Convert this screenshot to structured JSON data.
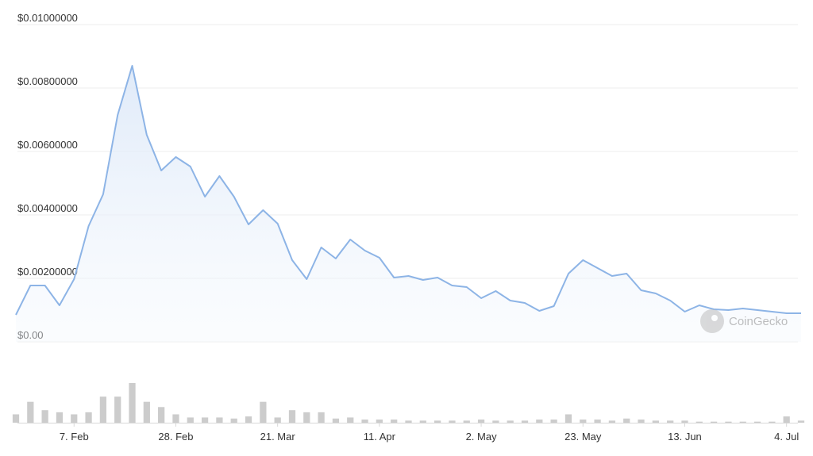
{
  "chart_data": {
    "type": "line",
    "x": [
      "26. Jan",
      "29. Jan",
      "1. Feb",
      "4. Feb",
      "7. Feb",
      "10. Feb",
      "13. Feb",
      "16. Feb",
      "19. Feb",
      "22. Feb",
      "25. Feb",
      "28. Feb",
      "3. Mar",
      "6. Mar",
      "9. Mar",
      "12. Mar",
      "15. Mar",
      "18. Mar",
      "21. Mar",
      "24. Mar",
      "27. Mar",
      "30. Mar",
      "2. Apr",
      "5. Apr",
      "8. Apr",
      "11. Apr",
      "14. Apr",
      "17. Apr",
      "20. Apr",
      "23. Apr",
      "26. Apr",
      "29. Apr",
      "2. May",
      "5. May",
      "8. May",
      "11. May",
      "14. May",
      "17. May",
      "20. May",
      "23. May",
      "26. May",
      "29. May",
      "1. Jun",
      "4. Jun",
      "7. Jun",
      "10. Jun",
      "13. Jun",
      "16. Jun",
      "19. Jun",
      "22. Jun",
      "25. Jun",
      "28. Jun",
      "1. Jul",
      "4. Jul",
      "7. Jul"
    ],
    "values": [
      0.00085,
      0.001775,
      0.001775,
      0.00115,
      0.001975,
      0.00365,
      0.00465,
      0.00715,
      0.0087,
      0.006525,
      0.0054,
      0.005825,
      0.005525,
      0.004575,
      0.005225,
      0.004575,
      0.0037,
      0.00415,
      0.003725,
      0.002575,
      0.001975,
      0.002975,
      0.002625,
      0.003225,
      0.002875,
      0.00265,
      0.002025,
      0.002075,
      0.00195,
      0.002025,
      0.001775,
      0.001725,
      0.001375,
      0.0016,
      0.0013,
      0.001225,
      0.000975,
      0.001125,
      0.00215,
      0.002575,
      0.002325,
      0.002075,
      0.00215,
      0.001625,
      0.001525,
      0.0013,
      0.00095,
      0.00115,
      0.001025,
      0.001,
      0.00105,
      0.001,
      0.00095,
      0.0009,
      0.0009
    ],
    "volume": [
      8,
      20,
      12,
      10,
      8,
      10,
      25,
      25,
      38,
      20,
      15,
      8,
      5,
      5,
      5,
      4,
      6,
      20,
      5,
      12,
      10,
      10,
      4,
      5,
      3,
      3,
      3,
      2,
      2,
      2,
      2,
      2,
      3,
      2,
      2,
      2,
      3,
      3,
      8,
      3,
      3,
      2,
      4,
      3,
      2,
      2,
      2,
      1,
      1,
      1,
      1,
      1,
      1,
      6,
      2
    ],
    "color": "#8db4e6",
    "volume_color": "#cccccc",
    "ylim": [
      0,
      0.01
    ],
    "yticks": [
      {
        "value": 0,
        "label": "$0.00"
      },
      {
        "value": 0.002,
        "label": "$0.00200000"
      },
      {
        "value": 0.004,
        "label": "$0.00400000"
      },
      {
        "value": 0.006,
        "label": "$0.00600000"
      },
      {
        "value": 0.008,
        "label": "$0.00800000"
      },
      {
        "value": 0.01,
        "label": "$0.01000000"
      }
    ],
    "xticks": [
      "7. Feb",
      "28. Feb",
      "21. Mar",
      "11. Apr",
      "2. May",
      "23. May",
      "13. Jun",
      "4. Jul"
    ],
    "grid": true,
    "watermark": "CoinGecko"
  }
}
